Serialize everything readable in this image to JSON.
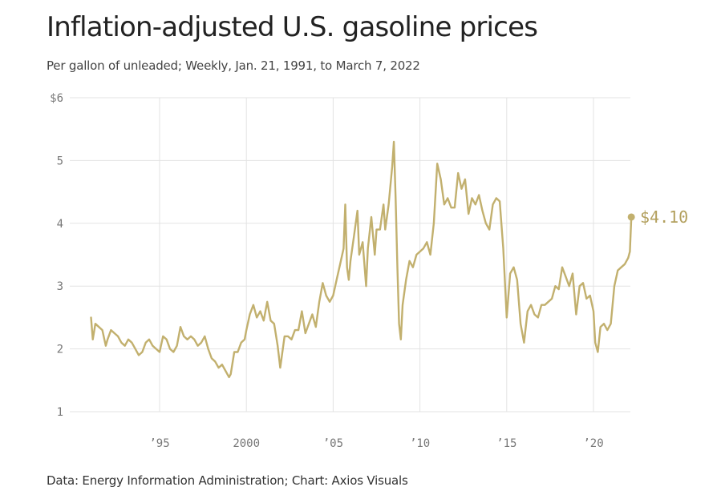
{
  "header": {
    "title": "Inflation-adjusted U.S. gasoline prices",
    "subtitle": "Per gallon of unleaded; Weekly, Jan. 21, 1991, to March 7, 2022"
  },
  "footer": {
    "source": "Data: Energy Information Administration; Chart: Axios Visuals"
  },
  "colors": {
    "line": "#c2b06e",
    "grid": "#e3e3e3",
    "label": "#b3a05e",
    "tick": "#777777"
  },
  "chart_data": {
    "type": "line",
    "title": "Inflation-adjusted U.S. gasoline prices",
    "subtitle": "Per gallon of unleaded; Weekly, Jan. 21, 1991, to March 7, 2022",
    "xlabel": "",
    "ylabel": "",
    "xlim": [
      1991.05,
      2022.18
    ],
    "ylim": [
      1,
      6
    ],
    "y_ticks": [
      {
        "value": 6,
        "label": "$6"
      },
      {
        "value": 5,
        "label": "5"
      },
      {
        "value": 4,
        "label": "4"
      },
      {
        "value": 3,
        "label": "3"
      },
      {
        "value": 2,
        "label": "2"
      },
      {
        "value": 1,
        "label": "1"
      }
    ],
    "x_ticks": [
      {
        "value": 1995,
        "label": "’95"
      },
      {
        "value": 2000,
        "label": "2000"
      },
      {
        "value": 2005,
        "label": "’05"
      },
      {
        "value": 2010,
        "label": "’10"
      },
      {
        "value": 2015,
        "label": "’15"
      },
      {
        "value": 2020,
        "label": "’20"
      }
    ],
    "grid": true,
    "end_label": "$4.10",
    "series": [
      {
        "x": [
          1991.05,
          1991.15,
          1991.3,
          1991.5,
          1991.7,
          1991.9,
          1992.0,
          1992.2,
          1992.4,
          1992.6,
          1992.8,
          1993.0,
          1993.2,
          1993.4,
          1993.6,
          1993.8,
          1994.0,
          1994.2,
          1994.4,
          1994.6,
          1994.8,
          1995.0,
          1995.2,
          1995.4,
          1995.6,
          1995.8,
          1996.0,
          1996.2,
          1996.4,
          1996.6,
          1996.8,
          1997.0,
          1997.2,
          1997.4,
          1997.6,
          1997.8,
          1998.0,
          1998.2,
          1998.4,
          1998.6,
          1998.8,
          1999.0,
          1999.1,
          1999.3,
          1999.5,
          1999.7,
          1999.9,
          2000.0,
          2000.2,
          2000.4,
          2000.6,
          2000.8,
          2001.0,
          2001.2,
          2001.4,
          2001.6,
          2001.8,
          2001.95,
          2002.0,
          2002.2,
          2002.4,
          2002.6,
          2002.8,
          2003.0,
          2003.2,
          2003.4,
          2003.6,
          2003.8,
          2004.0,
          2004.2,
          2004.4,
          2004.6,
          2004.8,
          2005.0,
          2005.2,
          2005.4,
          2005.6,
          2005.7,
          2005.8,
          2005.9,
          2006.0,
          2006.2,
          2006.4,
          2006.5,
          2006.7,
          2006.9,
          2007.0,
          2007.2,
          2007.4,
          2007.5,
          2007.7,
          2007.9,
          2008.0,
          2008.2,
          2008.4,
          2008.5,
          2008.6,
          2008.7,
          2008.8,
          2008.9,
          2009.0,
          2009.2,
          2009.4,
          2009.6,
          2009.8,
          2010.0,
          2010.2,
          2010.4,
          2010.6,
          2010.8,
          2011.0,
          2011.2,
          2011.4,
          2011.6,
          2011.8,
          2012.0,
          2012.2,
          2012.4,
          2012.6,
          2012.8,
          2013.0,
          2013.2,
          2013.4,
          2013.6,
          2013.8,
          2014.0,
          2014.2,
          2014.4,
          2014.6,
          2014.8,
          2015.0,
          2015.2,
          2015.4,
          2015.6,
          2015.8,
          2016.0,
          2016.2,
          2016.4,
          2016.6,
          2016.8,
          2017.0,
          2017.2,
          2017.4,
          2017.6,
          2017.8,
          2018.0,
          2018.2,
          2018.4,
          2018.6,
          2018.8,
          2019.0,
          2019.2,
          2019.4,
          2019.6,
          2019.8,
          2020.0,
          2020.1,
          2020.25,
          2020.4,
          2020.6,
          2020.8,
          2021.0,
          2021.2,
          2021.4,
          2021.6,
          2021.8,
          2022.0,
          2022.1,
          2022.18
        ],
        "values": [
          2.5,
          2.15,
          2.4,
          2.35,
          2.3,
          2.05,
          2.15,
          2.3,
          2.25,
          2.2,
          2.1,
          2.05,
          2.15,
          2.1,
          2.0,
          1.9,
          1.95,
          2.1,
          2.15,
          2.05,
          2.0,
          1.95,
          2.2,
          2.15,
          2.0,
          1.95,
          2.05,
          2.35,
          2.2,
          2.15,
          2.2,
          2.15,
          2.05,
          2.1,
          2.2,
          2.0,
          1.85,
          1.8,
          1.7,
          1.75,
          1.65,
          1.55,
          1.6,
          1.95,
          1.95,
          2.1,
          2.15,
          2.3,
          2.55,
          2.7,
          2.5,
          2.6,
          2.45,
          2.75,
          2.45,
          2.4,
          2.05,
          1.7,
          1.8,
          2.2,
          2.2,
          2.15,
          2.3,
          2.3,
          2.6,
          2.25,
          2.4,
          2.55,
          2.35,
          2.75,
          3.05,
          2.85,
          2.75,
          2.85,
          3.1,
          3.35,
          3.6,
          4.3,
          3.3,
          3.1,
          3.4,
          3.8,
          4.2,
          3.5,
          3.7,
          3.0,
          3.6,
          4.1,
          3.5,
          3.9,
          3.9,
          4.3,
          3.9,
          4.3,
          4.9,
          5.3,
          4.4,
          3.3,
          2.4,
          2.15,
          2.7,
          3.1,
          3.4,
          3.3,
          3.5,
          3.55,
          3.6,
          3.7,
          3.5,
          4.0,
          4.95,
          4.7,
          4.3,
          4.4,
          4.25,
          4.25,
          4.8,
          4.55,
          4.7,
          4.15,
          4.4,
          4.3,
          4.45,
          4.2,
          4.0,
          3.9,
          4.3,
          4.4,
          4.35,
          3.6,
          2.5,
          3.2,
          3.3,
          3.1,
          2.4,
          2.1,
          2.6,
          2.7,
          2.55,
          2.5,
          2.7,
          2.7,
          2.75,
          2.8,
          3.0,
          2.95,
          3.3,
          3.15,
          3.0,
          3.2,
          2.55,
          3.0,
          3.05,
          2.8,
          2.85,
          2.6,
          2.1,
          1.95,
          2.35,
          2.4,
          2.3,
          2.4,
          3.0,
          3.25,
          3.3,
          3.35,
          3.45,
          3.55,
          4.1
        ]
      }
    ]
  }
}
